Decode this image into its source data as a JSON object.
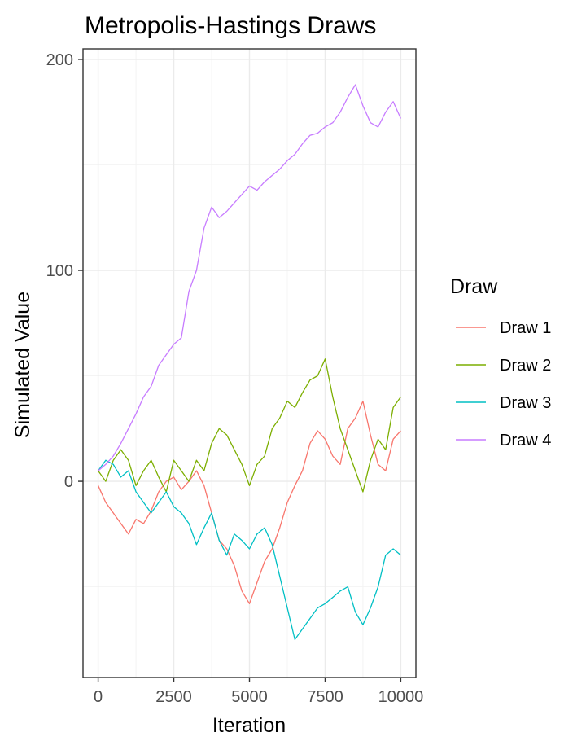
{
  "chart_data": {
    "type": "line",
    "title": "Metropolis-Hastings Draws",
    "xlabel": "Iteration",
    "ylabel": "Simulated Value",
    "xlim": [
      -500,
      10500
    ],
    "ylim": [
      -93,
      205
    ],
    "x_ticks": [
      0,
      2500,
      5000,
      7500,
      10000
    ],
    "x_tick_labels": [
      "0",
      "2500",
      "5000",
      "7500",
      "10000"
    ],
    "y_ticks": [
      0,
      100,
      200
    ],
    "y_tick_labels": [
      "0",
      "100",
      "200"
    ],
    "grid": true,
    "legend": {
      "title": "Draw",
      "position": "right"
    },
    "series": [
      {
        "name": "Draw 1",
        "color": "#F8766D",
        "x": [
          0,
          250,
          500,
          750,
          1000,
          1250,
          1500,
          1750,
          2000,
          2250,
          2500,
          2750,
          3000,
          3250,
          3500,
          3750,
          4000,
          4250,
          4500,
          4750,
          5000,
          5250,
          5500,
          5750,
          6000,
          6250,
          6500,
          6750,
          7000,
          7250,
          7500,
          7750,
          8000,
          8250,
          8500,
          8750,
          9000,
          9250,
          9500,
          9750,
          10000
        ],
        "values": [
          -2,
          -10,
          -15,
          -20,
          -25,
          -18,
          -20,
          -14,
          -5,
          0,
          2,
          -4,
          0,
          5,
          -2,
          -15,
          -28,
          -32,
          -40,
          -52,
          -58,
          -48,
          -38,
          -32,
          -22,
          -10,
          -2,
          5,
          18,
          24,
          20,
          12,
          8,
          25,
          30,
          38,
          22,
          8,
          5,
          20,
          24
        ]
      },
      {
        "name": "Draw 2",
        "color": "#7CAE00",
        "x": [
          0,
          250,
          500,
          750,
          1000,
          1250,
          1500,
          1750,
          2000,
          2250,
          2500,
          2750,
          3000,
          3250,
          3500,
          3750,
          4000,
          4250,
          4500,
          4750,
          5000,
          5250,
          5500,
          5750,
          6000,
          6250,
          6500,
          6750,
          7000,
          7250,
          7500,
          7750,
          8000,
          8250,
          8500,
          8750,
          9000,
          9250,
          9500,
          9750,
          10000
        ],
        "values": [
          5,
          0,
          10,
          15,
          10,
          -2,
          5,
          10,
          2,
          -5,
          10,
          5,
          0,
          10,
          5,
          18,
          25,
          22,
          15,
          8,
          -2,
          8,
          12,
          25,
          30,
          38,
          35,
          42,
          48,
          50,
          58,
          40,
          25,
          15,
          5,
          -5,
          10,
          20,
          15,
          35,
          40
        ]
      },
      {
        "name": "Draw 3",
        "color": "#00BFC4",
        "x": [
          0,
          250,
          500,
          750,
          1000,
          1250,
          1500,
          1750,
          2000,
          2250,
          2500,
          2750,
          3000,
          3250,
          3500,
          3750,
          4000,
          4250,
          4500,
          4750,
          5000,
          5250,
          5500,
          5750,
          6000,
          6250,
          6500,
          6750,
          7000,
          7250,
          7500,
          7750,
          8000,
          8250,
          8500,
          8750,
          9000,
          9250,
          9500,
          9750,
          10000
        ],
        "values": [
          5,
          10,
          8,
          2,
          5,
          -5,
          -10,
          -15,
          -10,
          -5,
          -12,
          -15,
          -20,
          -30,
          -22,
          -15,
          -28,
          -35,
          -25,
          -28,
          -32,
          -25,
          -22,
          -30,
          -45,
          -60,
          -75,
          -70,
          -65,
          -60,
          -58,
          -55,
          -52,
          -50,
          -62,
          -68,
          -60,
          -50,
          -35,
          -32,
          -35
        ]
      },
      {
        "name": "Draw 4",
        "color": "#C77CFF",
        "x": [
          0,
          250,
          500,
          750,
          1000,
          1250,
          1500,
          1750,
          2000,
          2250,
          2500,
          2750,
          3000,
          3250,
          3500,
          3750,
          4000,
          4250,
          4500,
          4750,
          5000,
          5250,
          5500,
          5750,
          6000,
          6250,
          6500,
          6750,
          7000,
          7250,
          7500,
          7750,
          8000,
          8250,
          8500,
          8750,
          9000,
          9250,
          9500,
          9750,
          10000
        ],
        "values": [
          5,
          8,
          12,
          18,
          25,
          32,
          40,
          45,
          55,
          60,
          65,
          68,
          90,
          100,
          120,
          130,
          125,
          128,
          132,
          136,
          140,
          138,
          142,
          145,
          148,
          152,
          155,
          160,
          164,
          165,
          168,
          170,
          175,
          182,
          188,
          178,
          170,
          168,
          175,
          180,
          172
        ]
      }
    ]
  }
}
